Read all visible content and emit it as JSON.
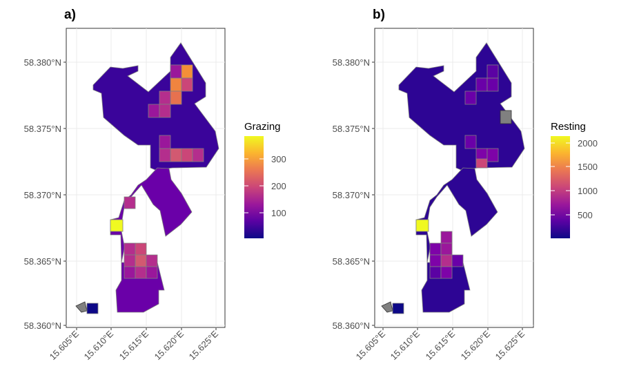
{
  "panels": [
    {
      "tag": "a)",
      "legend_title": "Grazing",
      "legend_ticks": [
        "300",
        "200",
        "100"
      ]
    },
    {
      "tag": "b)",
      "legend_title": "Resting",
      "legend_ticks": [
        "2000",
        "1500",
        "1000",
        "500"
      ]
    }
  ],
  "y_ticks": [
    "58.380°N",
    "58.375°N",
    "58.370°N",
    "58.365°N",
    "58.360°N"
  ],
  "x_ticks": [
    "15.605°E",
    "15.610°E",
    "15.615°E",
    "15.620°E",
    "15.625°E"
  ],
  "colors": {
    "palette": [
      "#0d0887",
      "#5b02a3",
      "#9a179b",
      "#cb4678",
      "#eb7852",
      "#fbb32f",
      "#f0f921"
    ],
    "no_data": "#808080",
    "grid": "#ebebeb",
    "cell_border": "#808080"
  },
  "chart_data": [
    {
      "type": "heatmap",
      "title": "a)",
      "legend_title": "Grazing",
      "color_range": [
        0,
        380
      ],
      "color_ticks": [
        100,
        200,
        300
      ],
      "xlim": [
        15.604,
        15.6255
      ],
      "ylim": [
        58.3597,
        58.3825
      ],
      "x_ticks": [
        "15.605°E",
        "15.610°E",
        "15.615°E",
        "15.620°E",
        "15.625°E"
      ],
      "y_ticks": [
        "58.380°N",
        "58.375°N",
        "58.370°N",
        "58.365°N",
        "58.360°N"
      ],
      "grid": true
    },
    {
      "type": "heatmap",
      "title": "b)",
      "legend_title": "Resting",
      "color_range": [
        0,
        2200
      ],
      "color_ticks": [
        500,
        1000,
        1500,
        2000
      ],
      "xlim": [
        15.604,
        15.6255
      ],
      "ylim": [
        58.3597,
        58.3825
      ],
      "x_ticks": [
        "15.605°E",
        "15.610°E",
        "15.615°E",
        "15.620°E",
        "15.625°E"
      ],
      "y_ticks": [
        "58.380°N",
        "58.375°N",
        "58.370°N",
        "58.365°N",
        "58.360°N"
      ],
      "grid": true
    }
  ]
}
